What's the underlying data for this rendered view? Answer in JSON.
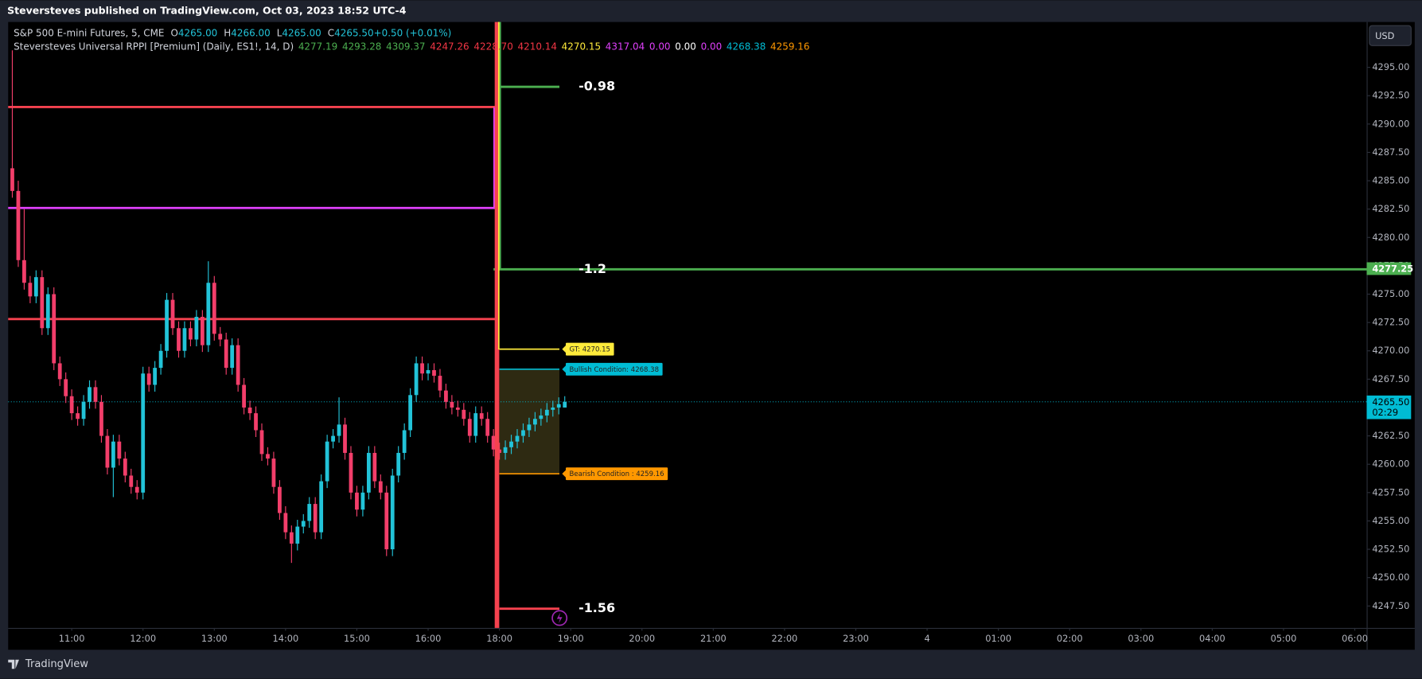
{
  "chart_data": {
    "type": "candlestick",
    "title": "Steversteves published on TradingView.com, Oct 03, 2023 18:52 UTC-4",
    "symbol": "S&P 500 E-mini Futures, 5, CME",
    "ohlc_legend": [
      {
        "key": "O",
        "text": "4265.00"
      },
      {
        "key": "H",
        "text": "4266.00"
      },
      {
        "key": "L",
        "text": "4265.00"
      },
      {
        "key": "C",
        "text": "4265.50"
      },
      {
        "key": "",
        "text": "+0.50 (+0.01%)"
      }
    ],
    "indicator": {
      "name": "Steversteves Universal RPPI [Premium] (Daily, ES1!, 14, D)",
      "values": [
        {
          "text": "4277.19",
          "color": "#4caf50"
        },
        {
          "text": "4293.28",
          "color": "#4caf50"
        },
        {
          "text": "4309.37",
          "color": "#4caf50"
        },
        {
          "text": "4247.26",
          "color": "#f23645"
        },
        {
          "text": "4228.70",
          "color": "#f23645"
        },
        {
          "text": "4210.14",
          "color": "#f23645"
        },
        {
          "text": "4270.15",
          "color": "#ffeb3b"
        },
        {
          "text": "4317.04",
          "color": "#e040fb"
        },
        {
          "text": "0.00",
          "color": "#e040fb"
        },
        {
          "text": "0.00",
          "color": "#ffffff"
        },
        {
          "text": "0.00",
          "color": "#e040fb"
        },
        {
          "text": "4268.38",
          "color": "#00bcd4"
        },
        {
          "text": "4259.16",
          "color": "#ff9800"
        }
      ]
    },
    "currency": "USD",
    "footer": "TradingView",
    "up_color": "#22c3d8",
    "down_color": "#f23e6a",
    "candles": {
      "x": [
        2,
        3,
        4,
        5,
        6,
        7,
        8,
        9,
        10,
        11,
        12,
        13,
        14,
        15,
        16,
        17,
        18,
        19,
        20,
        21,
        22,
        23,
        24,
        25,
        26,
        27,
        28,
        29,
        30,
        31,
        32,
        33,
        34,
        35,
        36,
        37,
        38,
        39,
        40,
        41,
        42,
        43,
        44,
        45,
        46,
        47,
        48,
        49,
        50,
        51,
        52,
        53,
        54,
        55,
        56,
        57,
        58,
        59,
        60,
        61,
        62,
        63,
        64,
        65,
        66,
        67,
        68,
        69,
        70,
        71,
        72,
        73,
        74,
        75,
        76,
        77,
        78,
        79,
        80,
        81,
        82,
        83,
        84,
        85,
        86,
        87,
        88,
        89,
        90,
        91,
        92,
        93,
        94,
        95
      ],
      "open": [
        4286.1,
        4284.1,
        4278.0,
        4276.0,
        4274.8,
        4276.5,
        4272.0,
        4275.0,
        4268.9,
        4267.5,
        4266.0,
        4264.5,
        4264.0,
        4265.5,
        4266.8,
        4265.5,
        4262.5,
        4259.7,
        4262.0,
        4260.5,
        4259.0,
        4258.0,
        4257.5,
        4268.0,
        4267.0,
        4268.5,
        4270.0,
        4274.5,
        4272.0,
        4270.0,
        4272.0,
        4271.0,
        4273.0,
        4270.5,
        4276.0,
        4271.5,
        4271.0,
        4268.5,
        4270.5,
        4267.0,
        4265.0,
        4264.5,
        4263.0,
        4260.9,
        4260.5,
        4258.0,
        4255.7,
        4254.0,
        4253.0,
        4254.5,
        4255.0,
        4256.5,
        4254.0,
        4258.5,
        4262.0,
        4262.5,
        4263.5,
        4261.0,
        4257.5,
        4256.0,
        4257.5,
        4261.0,
        4258.5,
        4257.5,
        4252.5,
        4259.0,
        4261.0,
        4263.0,
        4266.1,
        4268.9,
        4268.0,
        4268.3,
        4267.8,
        4266.5,
        4265.5,
        4265.0,
        4264.8,
        4264.0,
        4262.5,
        4264.5,
        4264.0,
        4262.5,
        4261.3,
        4261.0,
        4261.5,
        4262.0,
        4262.5,
        4263.0,
        4263.5,
        4264.0,
        4264.3,
        4264.8,
        4265.0,
        4265.0
      ],
      "high": [
        4296.5,
        4285.0,
        4282.5,
        4276.6,
        4277.1,
        4277.1,
        4275.6,
        4275.6,
        4269.5,
        4268.1,
        4266.6,
        4265.1,
        4266.1,
        4267.4,
        4267.4,
        4266.1,
        4263.1,
        4262.6,
        4262.6,
        4261.1,
        4259.6,
        4258.6,
        4268.6,
        4268.6,
        4269.1,
        4270.6,
        4275.1,
        4275.1,
        4272.6,
        4272.6,
        4272.6,
        4273.6,
        4273.6,
        4277.9,
        4276.6,
        4272.1,
        4271.6,
        4271.1,
        4271.1,
        4267.6,
        4265.6,
        4265.1,
        4263.6,
        4261.5,
        4261.1,
        4258.6,
        4256.3,
        4254.6,
        4255.1,
        4255.6,
        4257.1,
        4257.1,
        4259.1,
        4262.6,
        4263.1,
        4265.9,
        4264.1,
        4261.6,
        4258.1,
        4258.1,
        4261.6,
        4261.6,
        4259.1,
        4258.1,
        4259.6,
        4261.6,
        4263.6,
        4266.7,
        4269.5,
        4269.5,
        4268.9,
        4268.9,
        4268.4,
        4267.1,
        4266.1,
        4265.6,
        4265.4,
        4264.6,
        4265.1,
        4265.1,
        4264.6,
        4263.1,
        4261.9,
        4262.1,
        4262.6,
        4263.1,
        4263.6,
        4264.1,
        4264.6,
        4264.9,
        4265.4,
        4265.6,
        4265.9,
        4266.0
      ],
      "low": [
        4283.5,
        4277.4,
        4275.4,
        4274.2,
        4274.2,
        4271.4,
        4271.4,
        4268.3,
        4266.9,
        4265.4,
        4263.9,
        4263.4,
        4263.4,
        4264.9,
        4264.9,
        4261.9,
        4259.1,
        4257.1,
        4259.9,
        4258.4,
        4257.4,
        4256.9,
        4256.9,
        4266.4,
        4266.4,
        4267.9,
        4269.4,
        4271.4,
        4269.4,
        4269.4,
        4270.4,
        4270.4,
        4269.9,
        4269.9,
        4270.9,
        4270.4,
        4267.9,
        4267.9,
        4266.4,
        4264.4,
        4263.9,
        4262.4,
        4260.3,
        4259.9,
        4257.4,
        4255.1,
        4253.4,
        4251.3,
        4252.4,
        4253.9,
        4254.4,
        4253.4,
        4253.4,
        4257.9,
        4261.4,
        4261.9,
        4260.4,
        4256.9,
        4255.4,
        4255.4,
        4256.9,
        4257.9,
        4256.9,
        4251.9,
        4251.9,
        4258.4,
        4260.4,
        4262.4,
        4265.5,
        4267.4,
        4267.4,
        4267.2,
        4265.9,
        4264.9,
        4264.4,
        4264.2,
        4263.4,
        4261.9,
        4261.9,
        4263.4,
        4261.9,
        4260.7,
        4260.4,
        4260.4,
        4260.9,
        4261.4,
        4261.9,
        4262.4,
        4262.9,
        4263.4,
        4263.7,
        4264.2,
        4264.4,
        4265.0
      ],
      "close": [
        4284.1,
        4278.0,
        4276.0,
        4274.8,
        4276.5,
        4272.0,
        4275.0,
        4268.9,
        4267.5,
        4266.0,
        4264.5,
        4264.0,
        4265.5,
        4266.8,
        4265.5,
        4262.5,
        4259.7,
        4262.0,
        4260.5,
        4259.0,
        4258.0,
        4257.5,
        4268.0,
        4267.0,
        4268.5,
        4270.0,
        4274.5,
        4272.0,
        4270.0,
        4272.0,
        4271.0,
        4273.0,
        4270.5,
        4276.0,
        4271.5,
        4271.0,
        4268.5,
        4270.5,
        4267.0,
        4265.0,
        4264.5,
        4263.0,
        4260.9,
        4260.5,
        4258.0,
        4255.7,
        4254.0,
        4253.0,
        4254.5,
        4255.0,
        4256.5,
        4254.0,
        4258.5,
        4262.0,
        4262.5,
        4263.5,
        4261.0,
        4257.5,
        4256.0,
        4257.5,
        4261.0,
        4258.5,
        4257.5,
        4252.5,
        4259.0,
        4261.0,
        4263.0,
        4266.1,
        4268.9,
        4268.0,
        4268.3,
        4267.8,
        4266.5,
        4265.5,
        4265.0,
        4264.8,
        4264.0,
        4262.5,
        4264.5,
        4264.0,
        4262.5,
        4261.3,
        4261.0,
        4261.5,
        4262.0,
        4262.5,
        4263.0,
        4263.5,
        4264.0,
        4264.3,
        4264.8,
        4265.0,
        4265.3,
        4265.5
      ]
    },
    "xlim": [
      1.3,
      230
    ],
    "xticks": [
      {
        "value": 12,
        "label": "11:00"
      },
      {
        "value": 24,
        "label": "12:00"
      },
      {
        "value": 36,
        "label": "13:00"
      },
      {
        "value": 48,
        "label": "14:00"
      },
      {
        "value": 60,
        "label": "15:00"
      },
      {
        "value": 72,
        "label": "16:00"
      },
      {
        "value": 84,
        "label": "18:00"
      },
      {
        "value": 96,
        "label": "19:00"
      },
      {
        "value": 108,
        "label": "20:00"
      },
      {
        "value": 120,
        "label": "21:00"
      },
      {
        "value": 132,
        "label": "22:00"
      },
      {
        "value": 144,
        "label": "23:00"
      },
      {
        "value": 156,
        "label": "4"
      },
      {
        "value": 168,
        "label": "01:00"
      },
      {
        "value": 180,
        "label": "02:00"
      },
      {
        "value": 192,
        "label": "03:00"
      },
      {
        "value": 204,
        "label": "04:00"
      },
      {
        "value": 216,
        "label": "05:00"
      },
      {
        "value": 228,
        "label": "06:00"
      }
    ],
    "ylim": [
      4245.56,
      4299
    ],
    "yticks": [
      {
        "value": 4295,
        "label": "4295.00"
      },
      {
        "value": 4292.5,
        "label": "4292.50"
      },
      {
        "value": 4290,
        "label": "4290.00"
      },
      {
        "value": 4287.5,
        "label": "4287.50"
      },
      {
        "value": 4285,
        "label": "4285.00"
      },
      {
        "value": 4282.5,
        "label": "4282.50"
      },
      {
        "value": 4280,
        "label": "4280.00"
      },
      {
        "value": 4277.5,
        "label": "4277.50"
      },
      {
        "value": 4275,
        "label": "4275.00"
      },
      {
        "value": 4272.5,
        "label": "4272.50"
      },
      {
        "value": 4270,
        "label": "4270.00"
      },
      {
        "value": 4267.5,
        "label": "4267.50"
      },
      {
        "value": 4265,
        "label": "4265.00"
      },
      {
        "value": 4262.5,
        "label": "4262.50"
      },
      {
        "value": 4260,
        "label": "4260.00"
      },
      {
        "value": 4257.5,
        "label": "4257.50"
      },
      {
        "value": 4255,
        "label": "4255.00"
      },
      {
        "value": 4252.5,
        "label": "4252.50"
      },
      {
        "value": 4250,
        "label": "4250.00"
      },
      {
        "value": 4247.5,
        "label": "4247.50"
      }
    ],
    "grid": false,
    "zone": {
      "top": 4268.38,
      "bottom": 4259.16,
      "from": 84,
      "to": 94.1,
      "color": "#2e2a12"
    },
    "levels": [
      {
        "value": 4291.5,
        "from": 1.3,
        "to": 83.3,
        "color": "#f5424f"
      },
      {
        "value": 4282.6,
        "from": 1.3,
        "to": 83.3,
        "color": "#e040fb"
      },
      {
        "value": 4272.8,
        "from": 1.3,
        "to": 83.3,
        "color": "#f5424f"
      },
      {
        "value": 4293.28,
        "from": 84,
        "to": 94.1,
        "color": "#4caf50",
        "label": "-0.98",
        "style": "big"
      },
      {
        "value": 4277.19,
        "from": 83,
        "to": 230,
        "color": "#4caf50",
        "label": "-1.2",
        "style": "big"
      },
      {
        "value": 4247.26,
        "from": 84,
        "to": 94.1,
        "color": "#f5424f",
        "label": "-1.56",
        "style": "big"
      },
      {
        "value": 4270.15,
        "from": 84,
        "to": 94.1,
        "color": "#ffeb3b",
        "label": "GT: 4270.15",
        "style": "tag"
      },
      {
        "value": 4268.38,
        "from": 84,
        "to": 94.1,
        "color": "#00bcd4",
        "label": "Bullish Condition: 4268.38",
        "style": "tag"
      },
      {
        "value": 4259.16,
        "from": 84,
        "to": 94.1,
        "color": "#ff9800",
        "label": "Bearish Condition : 4259.16",
        "style": "tag"
      }
    ],
    "price_tags": [
      {
        "value": 4277.25,
        "label": "4277.25",
        "color": "#4caf50"
      },
      {
        "value": 4265.5,
        "label": "4265.50",
        "countdown": "02:29",
        "color": "#00bcd4",
        "dotted_line": true
      }
    ]
  }
}
